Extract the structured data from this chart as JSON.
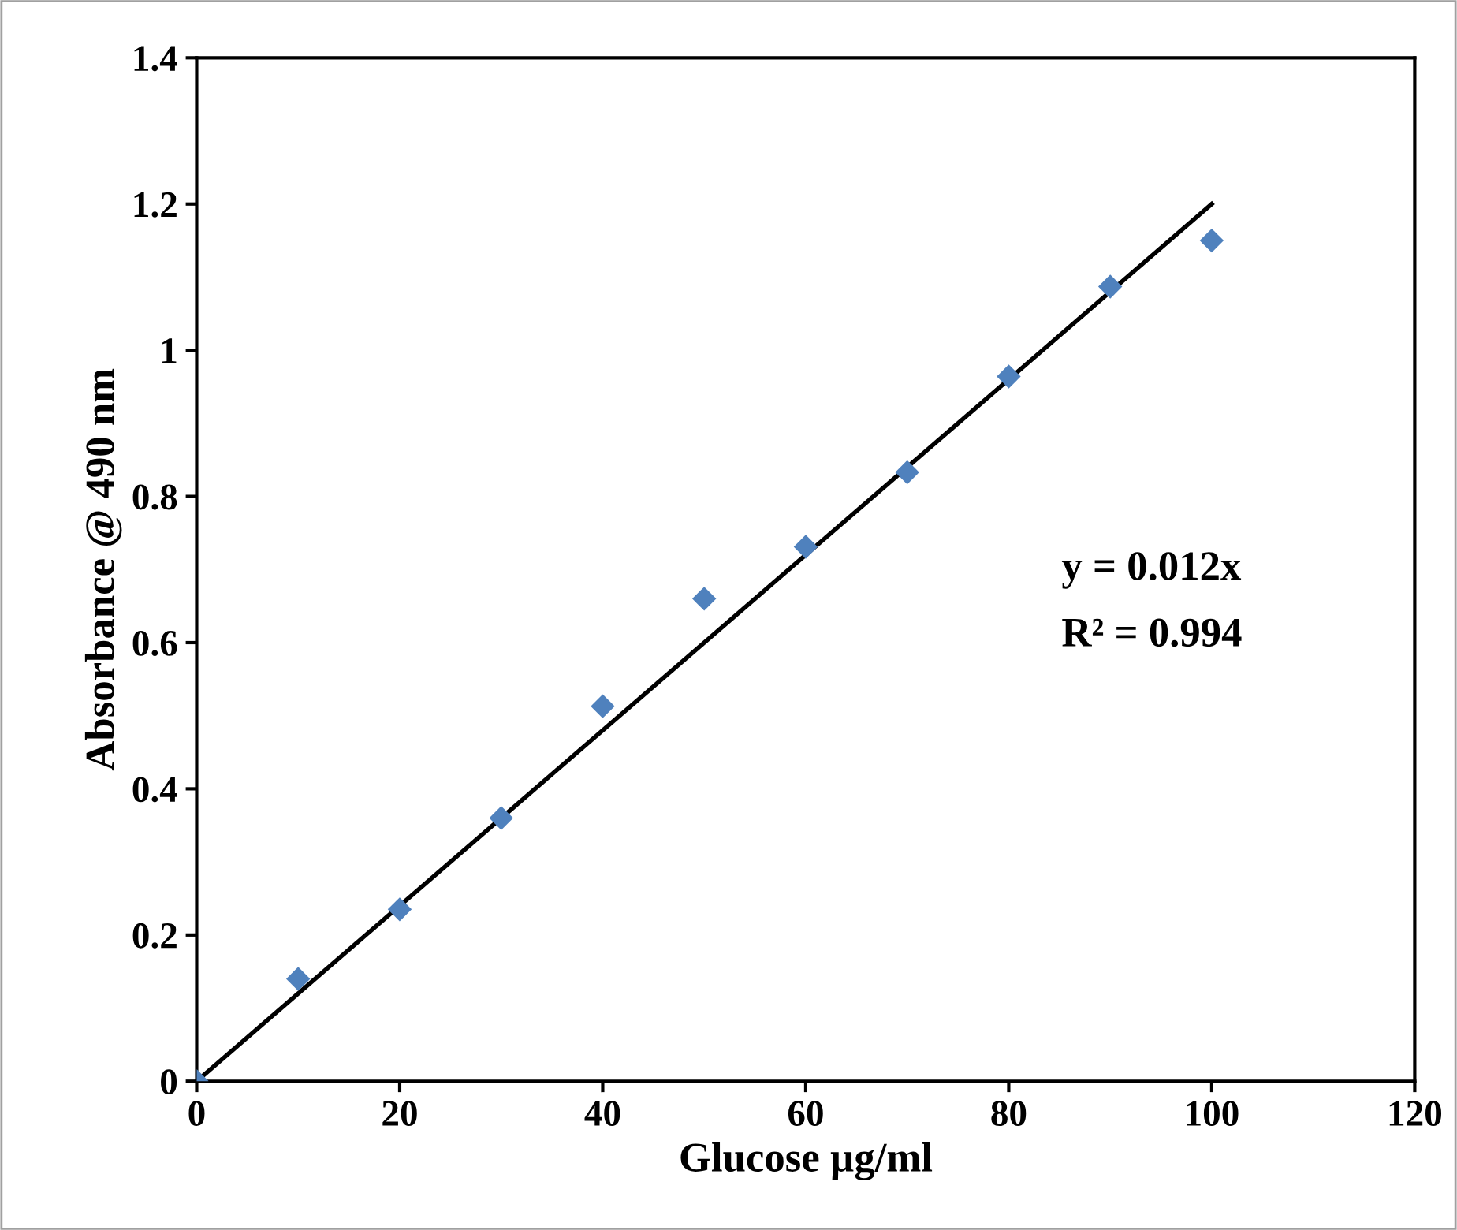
{
  "chart_data": {
    "type": "scatter",
    "xlabel": "Glucose µg/ml",
    "ylabel": "Absorbance @ 490 nm",
    "series": [
      {
        "type": "scatter",
        "color": "#4f81bd",
        "marker": "diamond",
        "x": [
          0,
          10,
          20,
          30,
          40,
          50,
          60,
          70,
          80,
          90,
          100
        ],
        "values": [
          0,
          0.14,
          0.235,
          0.36,
          0.513,
          0.66,
          0.731,
          0.833,
          0.964,
          1.087,
          1.15
        ]
      },
      {
        "type": "line",
        "color": "#000000",
        "marker": "none",
        "line_style": "solid",
        "x": [
          0,
          100
        ],
        "values": [
          0,
          1.2
        ]
      }
    ],
    "annotations": [
      "y = 0.012x",
      "R² = 0.994"
    ],
    "xlim": [
      0,
      120
    ],
    "xticks": [
      0,
      20,
      40,
      60,
      80,
      100,
      120
    ],
    "ylim": [
      0,
      1.4
    ],
    "yticks": [
      0,
      0.2,
      0.4,
      0.6,
      0.8,
      1,
      1.2,
      1.4
    ],
    "grid": false,
    "legend": false
  }
}
